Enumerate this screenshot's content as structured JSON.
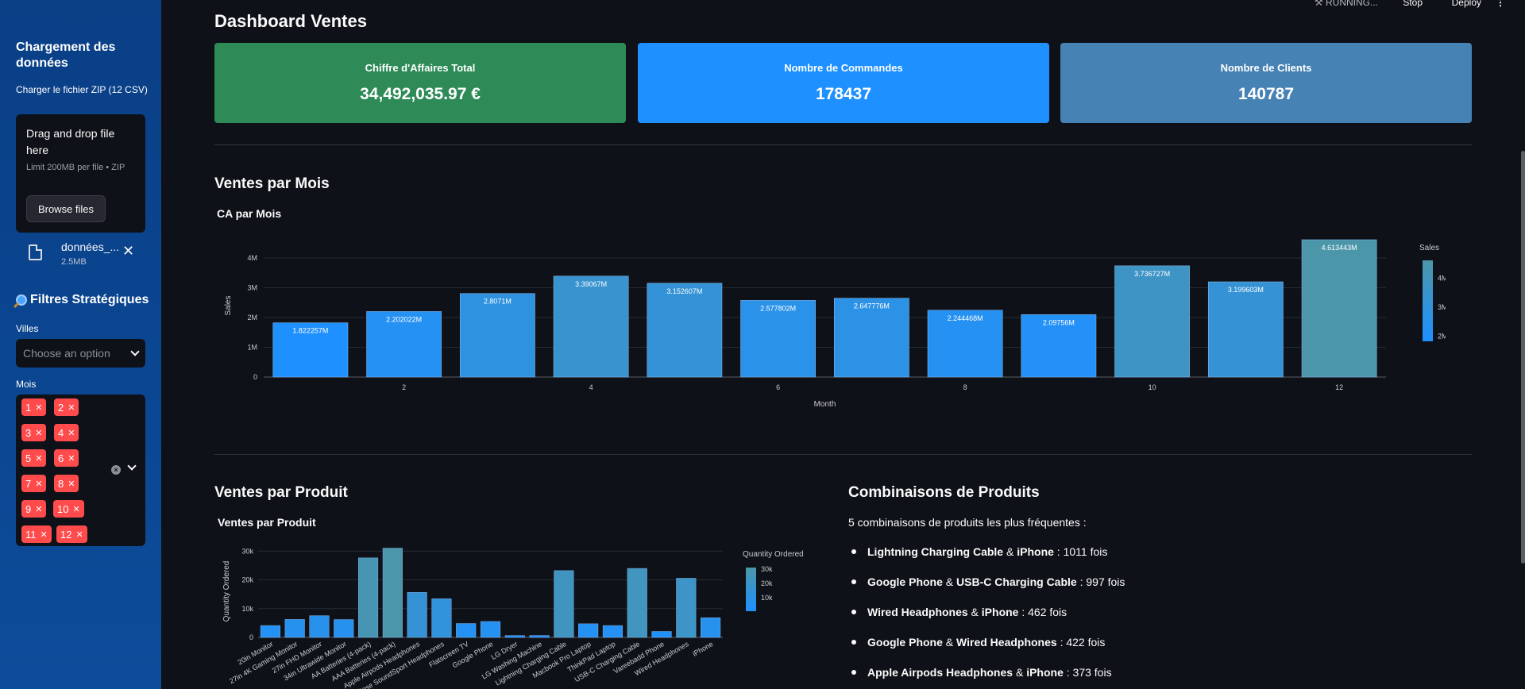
{
  "sidebar": {
    "upload_title": "Chargement des données",
    "upload_label": "Charger le fichier ZIP (12 CSV)",
    "dropzone_title": "Drag and drop file here",
    "dropzone_limit": "Limit 200MB per file • ZIP",
    "browse_label": "Browse files",
    "file_name": "données_...",
    "file_size": "2.5MB",
    "filters_title": "Filtres Stratégiques",
    "villes_label": "Villes",
    "villes_placeholder": "Choose an option",
    "mois_label": "Mois",
    "mois_tags": [
      "1",
      "2",
      "3",
      "4",
      "5",
      "6",
      "7",
      "8",
      "9",
      "10",
      "11",
      "12"
    ],
    "accent": "#ff4b4b"
  },
  "topbar": {
    "status": "RUNNING...",
    "stop": "Stop",
    "deploy": "Deploy"
  },
  "main": {
    "title": "Dashboard Ventes",
    "kpis": [
      {
        "label": "Chiffre d'Affaires Total",
        "value": "34,492,035.97 €",
        "color": "#2e8b57"
      },
      {
        "label": "Nombre de Commandes",
        "value": "178437",
        "color": "#1e90ff"
      },
      {
        "label": "Nombre de Clients",
        "value": "140787",
        "color": "#4682b4"
      }
    ],
    "section_month": "Ventes par Mois",
    "section_product": "Ventes par Produit",
    "section_combos": "Combinaisons de Produits",
    "combos_intro": "5 combinaisons de produits les plus fréquentes :",
    "combos": [
      {
        "a": "Lightning Charging Cable",
        "b": "iPhone",
        "count": "1011 fois"
      },
      {
        "a": "Google Phone",
        "b": "USB-C Charging Cable",
        "count": "997 fois"
      },
      {
        "a": "Wired Headphones",
        "b": "iPhone",
        "count": "462 fois"
      },
      {
        "a": "Google Phone",
        "b": "Wired Headphones",
        "count": "422 fois"
      },
      {
        "a": "Apple Airpods Headphones",
        "b": "iPhone",
        "count": "373 fois"
      }
    ]
  },
  "chart_data": [
    {
      "type": "bar",
      "title": "CA par Mois",
      "xlabel": "Month",
      "ylabel": "Sales",
      "categories": [
        1,
        2,
        3,
        4,
        5,
        6,
        7,
        8,
        9,
        10,
        11,
        12
      ],
      "values": [
        1822257,
        2202022,
        2807100,
        3390670,
        3152607,
        2577802,
        2647776,
        2244468,
        2097560,
        3736727,
        3199603,
        4613443
      ],
      "data_labels": [
        "1.822257M",
        "2.202022M",
        "2.8071M",
        "3.39067M",
        "3.152607M",
        "2.577802M",
        "2.647776M",
        "2.244468M",
        "2.09756M",
        "3.736727M",
        "3.199603M",
        "4.613443M"
      ],
      "x_ticks": [
        "2",
        "4",
        "6",
        "8",
        "10",
        "12"
      ],
      "y_ticks": [
        "0",
        "1M",
        "2M",
        "3M",
        "4M"
      ],
      "ylim": [
        0,
        4800000
      ],
      "colorbar_title": "Sales",
      "colorbar_ticks": [
        "2M",
        "3M",
        "4M"
      ],
      "legend": "right"
    },
    {
      "type": "bar",
      "title": "Ventes par Produit",
      "xlabel": "",
      "ylabel": "Quantity Ordered",
      "categories": [
        "20in Monitor",
        "27in 4K Gaming Monitor",
        "27in FHD Monitor",
        "34in Ultrawide Monitor",
        "AA Batteries (4-pack)",
        "AAA Batteries (4-pack)",
        "Apple Airpods Headphones",
        "Bose SoundSport Headphones",
        "Flatscreen TV",
        "Google Phone",
        "LG Dryer",
        "LG Washing Machine",
        "Lightning Charging Cable",
        "Macbook Pro Laptop",
        "ThinkPad Laptop",
        "USB-C Charging Cable",
        "Vareebadd Phone",
        "Wired Headphones",
        "iPhone"
      ],
      "values": [
        4129,
        6244,
        7550,
        6199,
        27635,
        31017,
        15661,
        13457,
        4819,
        5532,
        646,
        666,
        23217,
        4728,
        4130,
        23975,
        2068,
        20557,
        6849
      ],
      "y_ticks": [
        "0",
        "10k",
        "20k",
        "30k"
      ],
      "ylim": [
        0,
        32000
      ],
      "colorbar_title": "Quantity Ordered",
      "colorbar_ticks": [
        "10k",
        "20k",
        "30k"
      ],
      "legend": "right"
    }
  ]
}
